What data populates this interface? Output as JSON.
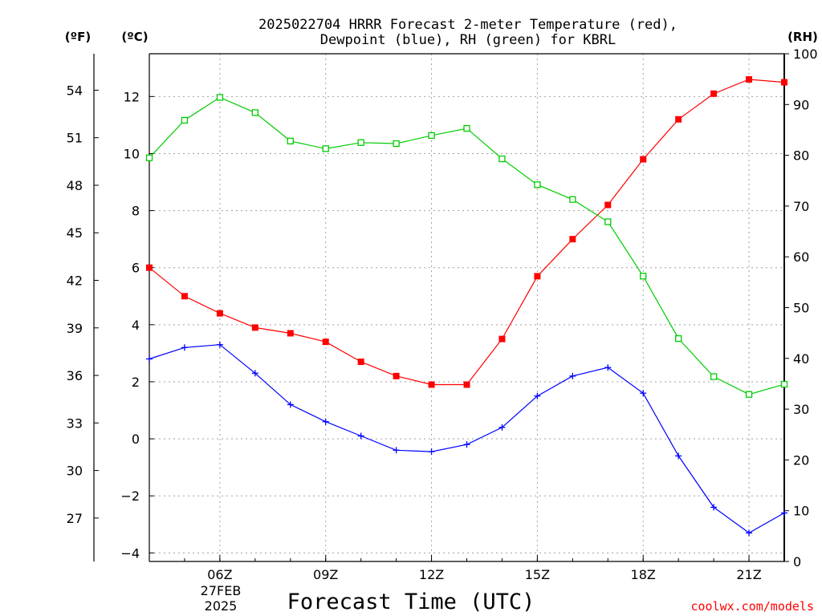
{
  "chart_data": {
    "type": "line",
    "title_line1": "2025022704 HRRR Forecast 2-meter Temperature (red),",
    "title_line2": "Dewpoint (blue), RH (green) for KBRL",
    "xlabel": "Forecast Time (UTC)",
    "credit": "coolwx.com/models",
    "unit_f": "(ºF)",
    "unit_c": "(ºC)",
    "unit_rh": "(RH)",
    "date_label_1": "27FEB",
    "date_label_2": "2025",
    "x_hours": [
      4,
      5,
      6,
      7,
      8,
      9,
      10,
      11,
      12,
      13,
      14,
      15,
      16,
      17,
      18,
      19,
      20,
      21,
      22
    ],
    "x_range": [
      4,
      22
    ],
    "x_ticks": [
      {
        "hour": 6,
        "label": "06Z"
      },
      {
        "hour": 9,
        "label": "09Z"
      },
      {
        "hour": 12,
        "label": "12Z"
      },
      {
        "hour": 15,
        "label": "15Z"
      },
      {
        "hour": 18,
        "label": "18Z"
      },
      {
        "hour": 21,
        "label": "21Z"
      }
    ],
    "ylim_c": [
      -4.3,
      13.5
    ],
    "ylim_rh": [
      0,
      100
    ],
    "yticks_c": [
      "-4",
      "-2",
      "0",
      "2",
      "4",
      "6",
      "8",
      "10",
      "12"
    ],
    "yticks_f": [
      "27",
      "30",
      "33",
      "36",
      "39",
      "42",
      "45",
      "48",
      "51",
      "54"
    ],
    "yticks_rh": [
      "0",
      "10",
      "20",
      "30",
      "40",
      "50",
      "60",
      "70",
      "80",
      "90",
      "100"
    ],
    "grid": true,
    "series": [
      {
        "name": "Temperature",
        "unit": "C",
        "color": "#ff0000",
        "marker": "filled-square",
        "values": [
          6.0,
          5.0,
          4.4,
          3.9,
          3.7,
          3.4,
          2.7,
          2.2,
          1.9,
          1.9,
          3.5,
          5.7,
          7.0,
          8.2,
          9.8,
          11.2,
          12.1,
          12.6,
          12.5
        ]
      },
      {
        "name": "Dewpoint",
        "unit": "C",
        "color": "#0000ff",
        "marker": "plus",
        "values": [
          2.8,
          3.2,
          3.3,
          2.3,
          1.2,
          0.6,
          0.1,
          -0.4,
          -0.45,
          -0.2,
          0.4,
          1.5,
          2.2,
          2.5,
          1.6,
          -0.6,
          -2.4,
          -3.3,
          -2.6
        ]
      },
      {
        "name": "RH",
        "unit": "%",
        "color": "#00cc00",
        "marker": "open-square",
        "values": [
          79.5,
          86.9,
          91.4,
          88.4,
          82.8,
          81.3,
          82.5,
          82.3,
          83.9,
          85.3,
          79.3,
          74.2,
          71.3,
          66.9,
          56.2,
          43.9,
          36.4,
          32.9,
          34.9
        ]
      }
    ]
  }
}
